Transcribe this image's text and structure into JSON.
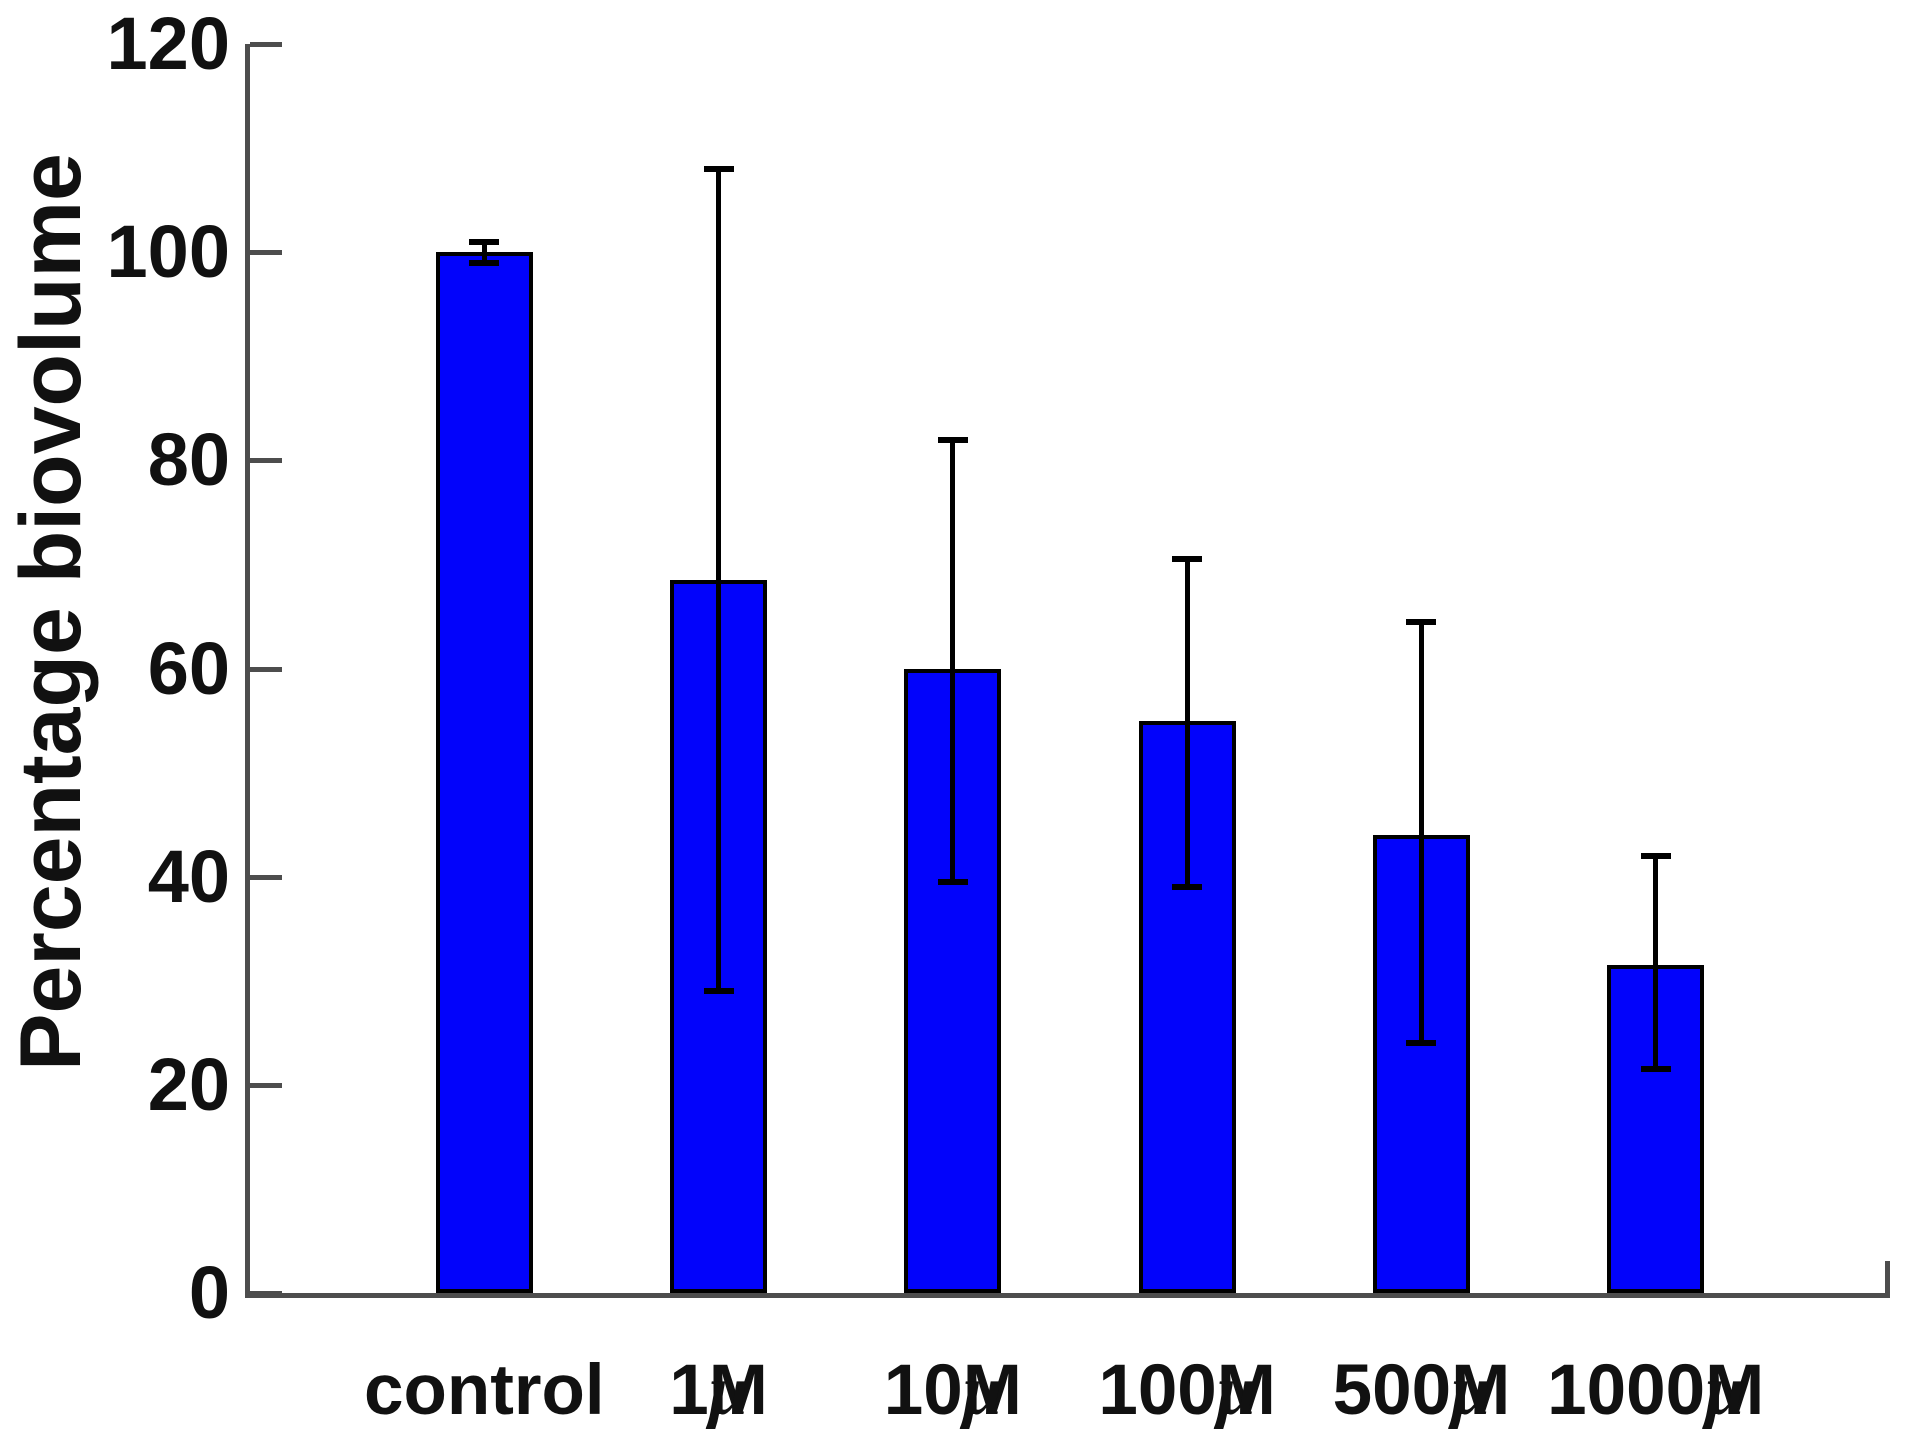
{
  "page": {
    "background": "#ffffff"
  },
  "chart_data": {
    "type": "bar",
    "title": "",
    "ylabel": "Percentage biovolume",
    "xlabel": "",
    "categories": [
      "control",
      "1μM",
      "10μM",
      "100μM",
      "500μM",
      "1000μM"
    ],
    "values": [
      100,
      68.5,
      60,
      55,
      44,
      31.5
    ],
    "error_whisker_top": [
      101,
      108,
      82,
      70.5,
      64.5,
      42
    ],
    "error_whisker_bottom": [
      99,
      29,
      39.5,
      39,
      24,
      21.5
    ],
    "ylim": [
      0,
      120
    ],
    "yticks": [
      0,
      20,
      40,
      60,
      80,
      100,
      120
    ],
    "grid": false,
    "legend": null,
    "bar_color": "#0203fb",
    "bar_border_color": "#000000",
    "error_bar_color": "#000000",
    "axis_color": "#4d4d4d",
    "text_color": "#111111"
  }
}
